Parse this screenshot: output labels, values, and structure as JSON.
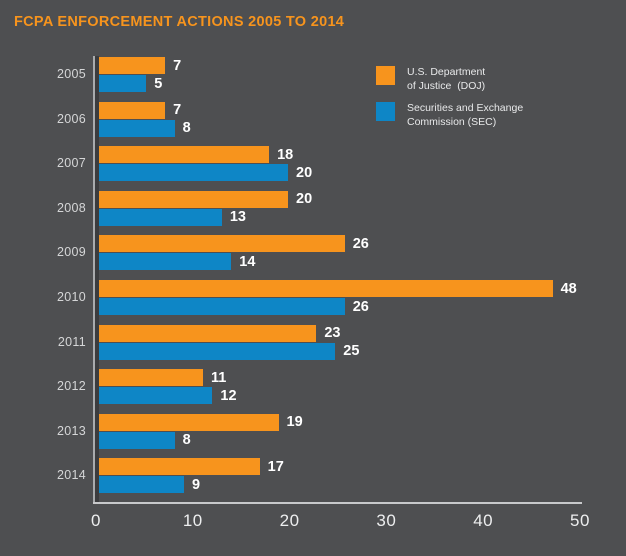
{
  "title": "FCPA ENFORCEMENT ACTIONS 2005 TO 2014",
  "colors": {
    "background": "#4E4F51",
    "title": "#F7941D",
    "doj_orange": "#F7941D",
    "sec_blue": "#0E86C6",
    "axis_line": "#C8C9CB",
    "year_label": "#D5D6D7",
    "tick_label": "#EDEEEF",
    "value_label": "#FFFFFF"
  },
  "legend": {
    "items": [
      {
        "key": "doj",
        "label": "U.S. Department\nof Justice  (DOJ)",
        "color": "#F7941D"
      },
      {
        "key": "sec",
        "label": "Securities and Exchange\nCommission (SEC)",
        "color": "#0E86C6"
      }
    ]
  },
  "chart_data": {
    "type": "bar",
    "orientation": "horizontal",
    "title": "FCPA ENFORCEMENT ACTIONS 2005 TO 2014",
    "categories": [
      "2005",
      "2006",
      "2007",
      "2008",
      "2009",
      "2010",
      "2011",
      "2012",
      "2013",
      "2014"
    ],
    "series": [
      {
        "key": "doj",
        "name": "U.S. Department of Justice (DOJ)",
        "color": "#F7941D",
        "values": [
          7,
          7,
          18,
          20,
          26,
          48,
          23,
          11,
          19,
          17
        ]
      },
      {
        "key": "sec",
        "name": "Securities and Exchange Commission (SEC)",
        "color": "#0E86C6",
        "values": [
          5,
          8,
          20,
          13,
          14,
          26,
          25,
          12,
          8,
          9
        ]
      }
    ],
    "xlabel": "",
    "ylabel": "",
    "xlim": [
      0,
      50
    ],
    "x_ticks": [
      0,
      10,
      20,
      30,
      40,
      50
    ],
    "grid": false,
    "legend_position": "top-right",
    "value_labels": true
  }
}
